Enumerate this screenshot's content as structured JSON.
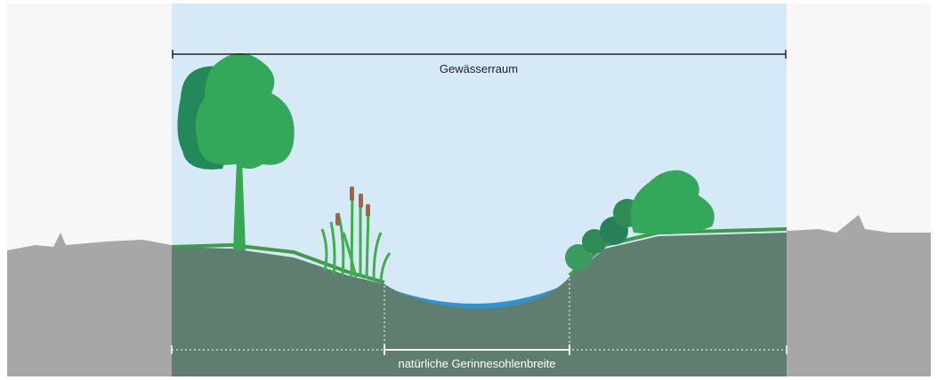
{
  "labels": {
    "top": "Gewässerraum",
    "bottom": "natürliche Gerinnesohlenbreite"
  }
}
